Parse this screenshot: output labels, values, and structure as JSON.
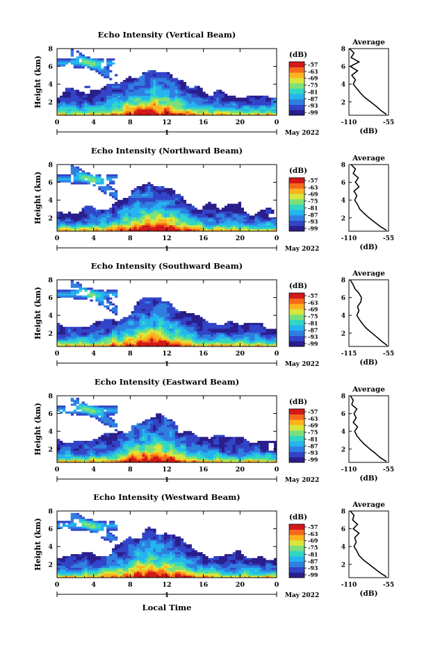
{
  "colorbar": {
    "unit": "(dB)",
    "tick_labels": [
      "-57",
      "-63",
      "-69",
      "-75",
      "-81",
      "-87",
      "-93",
      "-99"
    ],
    "colors": [
      "#2a1e8c",
      "#3245c8",
      "#2f7fe0",
      "#25b4f0",
      "#32d6c4",
      "#7be07a",
      "#d8e63c",
      "#ffb21e",
      "#f46a1a",
      "#d21818"
    ]
  },
  "month_label": "May 2022",
  "xlabel": "Local Time",
  "panels": [
    {
      "title": "Echo Intensity (Vertical Beam)",
      "avg_title": "Average",
      "avg_xticks": [
        "-110",
        "-55"
      ],
      "avg_xlabel": "(dB)"
    },
    {
      "title": "Echo Intensity (Northward Beam)",
      "avg_title": "Average",
      "avg_xticks": [
        "-110",
        "-55"
      ],
      "avg_xlabel": "(dB)"
    },
    {
      "title": "Echo Intensity (Southward Beam)",
      "avg_title": "Average",
      "avg_xticks": [
        "-115",
        "-55"
      ],
      "avg_xlabel": "(dB)"
    },
    {
      "title": "Echo Intensity (Eastward Beam)",
      "avg_title": "Average",
      "avg_xticks": [
        "-110",
        "-55"
      ],
      "avg_xlabel": "(dB)"
    },
    {
      "title": "Echo Intensity (Westward Beam)",
      "avg_title": "Average",
      "avg_xticks": [
        "-110",
        "-55"
      ],
      "avg_xlabel": "(dB)"
    }
  ],
  "chart_data": [
    {
      "type": "heatmap",
      "title": "Echo Intensity (Vertical Beam)",
      "ylabel": "Height (km)",
      "x_ticks": [
        "0",
        "4",
        "8",
        "12",
        "16",
        "20",
        "0"
      ],
      "date_ticks": [
        "1"
      ],
      "y_ticks": [
        "2",
        "4",
        "6",
        "8"
      ],
      "xlim": [
        0,
        24
      ],
      "ylim": [
        0.5,
        8
      ],
      "colorbar_range_db": [
        -99,
        -57
      ],
      "profile": {
        "title": "Average",
        "xlim": [
          -110,
          -55
        ],
        "ylim": [
          0.5,
          8
        ],
        "height": [
          0.6,
          1.0,
          1.5,
          2.0,
          2.5,
          3.0,
          3.5,
          4.0,
          4.5,
          5.0,
          5.5,
          6.0,
          6.5,
          7.0,
          7.5,
          8.0
        ],
        "db": [
          -58,
          -65,
          -72,
          -80,
          -88,
          -94,
          -99,
          -104,
          -101,
          -106,
          -98,
          -108,
          -96,
          -107,
          -103,
          -109
        ]
      }
    },
    {
      "type": "heatmap",
      "title": "Echo Intensity (Northward Beam)",
      "ylabel": "Height (km)",
      "x_ticks": [
        "0",
        "4",
        "8",
        "12",
        "16",
        "20",
        "0"
      ],
      "date_ticks": [
        "1"
      ],
      "y_ticks": [
        "2",
        "4",
        "6",
        "8"
      ],
      "xlim": [
        0,
        24
      ],
      "ylim": [
        0.5,
        8
      ],
      "colorbar_range_db": [
        -99,
        -57
      ],
      "profile": {
        "title": "Average",
        "xlim": [
          -110,
          -55
        ],
        "ylim": [
          0.5,
          8
        ],
        "height": [
          0.6,
          1.0,
          1.5,
          2.0,
          2.5,
          3.0,
          3.5,
          4.0,
          4.5,
          5.0,
          5.5,
          6.0,
          6.5,
          7.0,
          7.5,
          8.0
        ],
        "db": [
          -58,
          -66,
          -74,
          -82,
          -89,
          -95,
          -98,
          -102,
          -99,
          -103,
          -96,
          -101,
          -97,
          -104,
          -101,
          -107
        ]
      }
    },
    {
      "type": "heatmap",
      "title": "Echo Intensity (Southward Beam)",
      "ylabel": "Height (km)",
      "x_ticks": [
        "0",
        "4",
        "8",
        "12",
        "16",
        "20",
        "0"
      ],
      "date_ticks": [
        "1"
      ],
      "y_ticks": [
        "2",
        "4",
        "6",
        "8"
      ],
      "xlim": [
        0,
        24
      ],
      "ylim": [
        0.5,
        8
      ],
      "colorbar_range_db": [
        -99,
        -57
      ],
      "profile": {
        "title": "Average",
        "xlim": [
          -115,
          -55
        ],
        "ylim": [
          0.5,
          8
        ],
        "height": [
          0.6,
          1.0,
          1.5,
          2.0,
          2.5,
          3.0,
          3.5,
          4.0,
          4.5,
          5.0,
          5.5,
          6.0,
          6.5,
          7.0,
          7.5,
          8.0
        ],
        "db": [
          -57,
          -64,
          -72,
          -80,
          -88,
          -94,
          -99,
          -103,
          -100,
          -102,
          -97,
          -96,
          -100,
          -106,
          -109,
          -113
        ]
      }
    },
    {
      "type": "heatmap",
      "title": "Echo Intensity (Eastward Beam)",
      "ylabel": "Height (km)",
      "x_ticks": [
        "0",
        "4",
        "8",
        "12",
        "16",
        "20",
        "0"
      ],
      "date_ticks": [
        "1"
      ],
      "y_ticks": [
        "2",
        "4",
        "6",
        "8"
      ],
      "xlim": [
        0,
        24
      ],
      "ylim": [
        0.5,
        8
      ],
      "colorbar_range_db": [
        -99,
        -57
      ],
      "profile": {
        "title": "Average",
        "xlim": [
          -110,
          -55
        ],
        "ylim": [
          0.5,
          8
        ],
        "height": [
          0.6,
          1.0,
          1.5,
          2.0,
          2.5,
          3.0,
          3.5,
          4.0,
          4.5,
          5.0,
          5.5,
          6.0,
          6.5,
          7.0,
          7.5,
          8.0
        ],
        "db": [
          -58,
          -66,
          -73,
          -81,
          -88,
          -94,
          -99,
          -102,
          -98,
          -104,
          -100,
          -103,
          -99,
          -106,
          -104,
          -108
        ]
      }
    },
    {
      "type": "heatmap",
      "title": "Echo Intensity (Westward Beam)",
      "ylabel": "Height (km)",
      "x_ticks": [
        "0",
        "4",
        "8",
        "12",
        "16",
        "20",
        "0"
      ],
      "date_ticks": [
        "1"
      ],
      "y_ticks": [
        "2",
        "4",
        "6",
        "8"
      ],
      "xlim": [
        0,
        24
      ],
      "ylim": [
        0.5,
        8
      ],
      "colorbar_range_db": [
        -99,
        -57
      ],
      "profile": {
        "title": "Average",
        "xlim": [
          -110,
          -55
        ],
        "ylim": [
          0.5,
          8
        ],
        "height": [
          0.6,
          1.0,
          1.5,
          2.0,
          2.5,
          3.0,
          3.5,
          4.0,
          4.5,
          5.0,
          5.5,
          6.0,
          6.5,
          7.0,
          7.5,
          8.0
        ],
        "db": [
          -58,
          -66,
          -74,
          -82,
          -90,
          -96,
          -99,
          -103,
          -100,
          -102,
          -96,
          -104,
          -98,
          -105,
          -103,
          -108
        ]
      }
    }
  ]
}
